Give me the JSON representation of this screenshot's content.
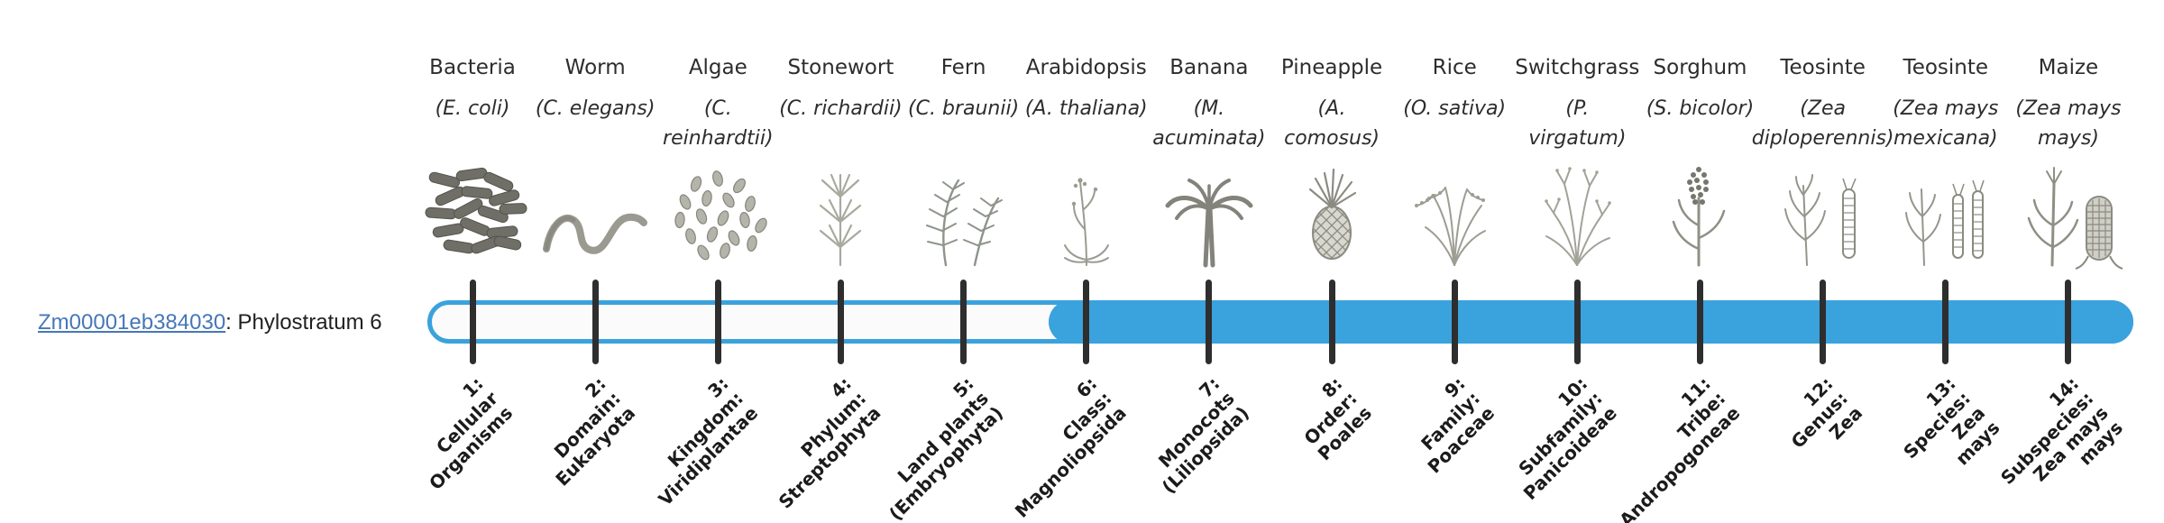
{
  "gene": {
    "id": "Zm00001eb384030",
    "suffix": ": Phylostratum 6",
    "link_color": "#4677b8"
  },
  "timeline": {
    "accent_color": "#3aa2dc",
    "track_color": "#fbfbfb",
    "tick_color": "#2e2e2e",
    "phylostratum": 6,
    "filled_from_stratum": 6,
    "total_strata": 14
  },
  "organisms": [
    {
      "common": "Bacteria",
      "latin": "(E. coli)",
      "icon": "bacteria-icon",
      "stratum": "1:\nCellular\nOrganisms"
    },
    {
      "common": "Worm",
      "latin": "(C. elegans)",
      "icon": "worm-icon",
      "stratum": "2:\nDomain:\nEukaryota"
    },
    {
      "common": "Algae",
      "latin": "(C.\nreinhardtii)",
      "icon": "algae-icon",
      "stratum": "3:\nKingdom:\nViridiplantae"
    },
    {
      "common": "Stonewort",
      "latin": "(C. richardii)",
      "icon": "stonewort-icon",
      "stratum": "4:\nPhylum:\nStreptophyta"
    },
    {
      "common": "Fern",
      "latin": "(C. braunii)",
      "icon": "fern-icon",
      "stratum": "5:\nLand plants\n(Embryophyta)"
    },
    {
      "common": "Arabidopsis",
      "latin": "(A. thaliana)",
      "icon": "arabidopsis-icon",
      "stratum": "6:\nClass:\nMagnoliopsida"
    },
    {
      "common": "Banana",
      "latin": "(M.\nacuminata)",
      "icon": "banana-icon",
      "stratum": "7:\nMonocots\n(Liliopsida)"
    },
    {
      "common": "Pineapple",
      "latin": "(A.\ncomosus)",
      "icon": "pineapple-icon",
      "stratum": "8:\nOrder:\nPoales"
    },
    {
      "common": "Rice",
      "latin": "(O. sativa)",
      "icon": "rice-icon",
      "stratum": "9:\nFamily:\nPoaceae"
    },
    {
      "common": "Switchgrass",
      "latin": "(P.\nvirgatum)",
      "icon": "switchgrass-icon",
      "stratum": "10:\nSubfamily:\nPanicoideae"
    },
    {
      "common": "Sorghum",
      "latin": "(S. bicolor)",
      "icon": "sorghum-icon",
      "stratum": "11:\nTribe:\nAndropogoneae"
    },
    {
      "common": "Teosinte",
      "latin": "(Zea\ndiploperennis)",
      "icon": "teosinte-diploperennis-icon",
      "stratum": "12:\nGenus:\nZea"
    },
    {
      "common": "Teosinte",
      "latin": "(Zea mays\nmexicana)",
      "icon": "teosinte-mexicana-icon",
      "stratum": "13:\nSpecies:\nZea\nmays"
    },
    {
      "common": "Maize",
      "latin": "(Zea mays\nmays)",
      "icon": "maize-icon",
      "stratum": "14:\nSubspecies:\nZea mays\nmays"
    }
  ]
}
